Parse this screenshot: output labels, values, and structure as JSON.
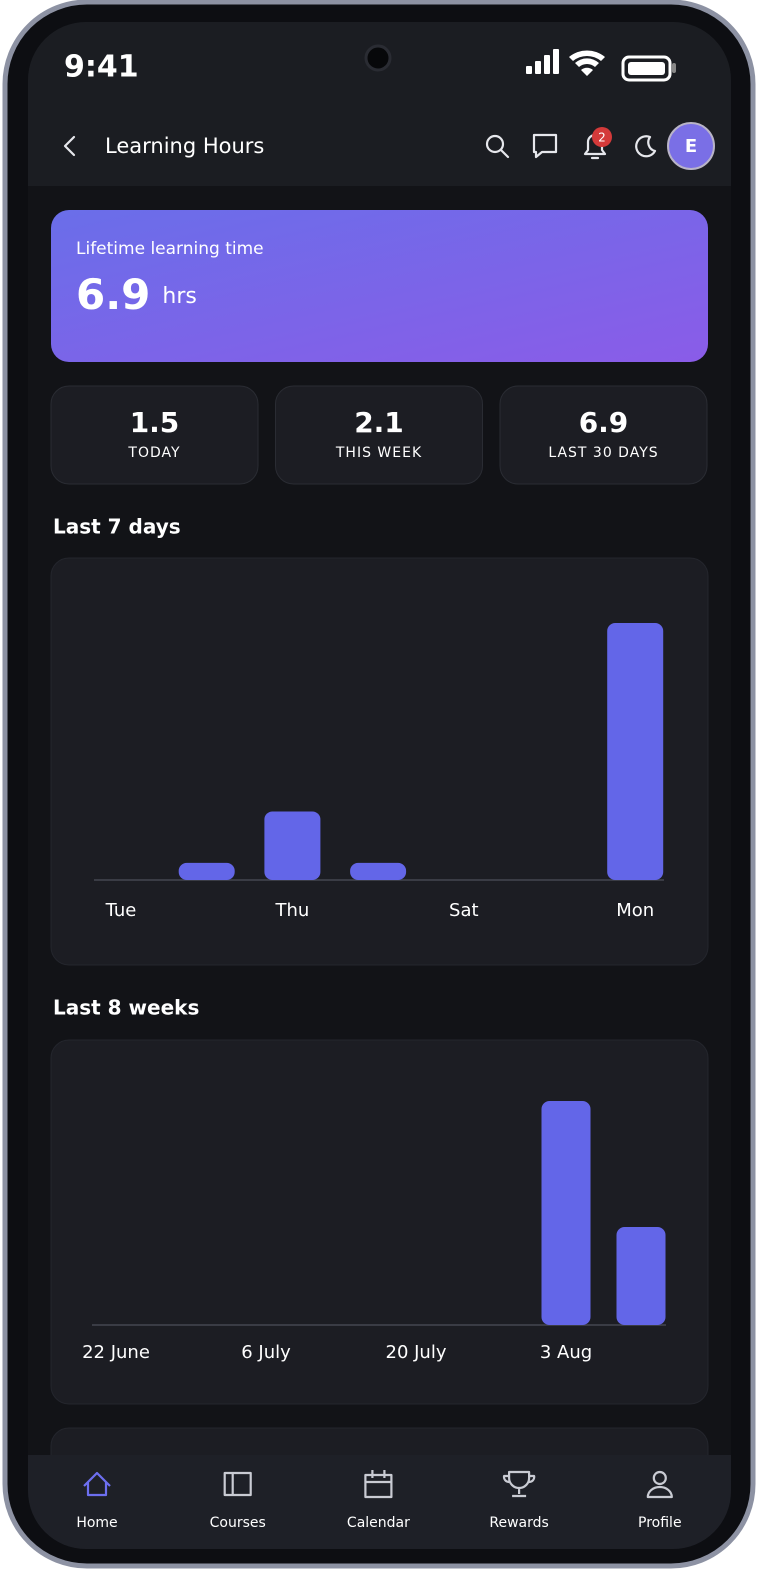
{
  "status_bar": {
    "time": "9:41"
  },
  "header": {
    "title": "Learning Hours",
    "notification_count": 2,
    "avatar": "E"
  },
  "summary": {
    "label": "Lifetime learning time",
    "value": 6.9,
    "unit": "hrs"
  },
  "stats": [
    {
      "value": 1.5,
      "label": "TODAY"
    },
    {
      "value": 2.1,
      "label": "THIS WEEK"
    },
    {
      "value": 6.9,
      "label": "LAST 30 DAYS"
    }
  ],
  "charts": [
    {
      "type": "bar",
      "title": "Last 7 days",
      "color": "#6366e8",
      "categories": [
        "Tue",
        null,
        "Thu",
        null,
        "Sat",
        null,
        "Mon"
      ],
      "values": [
        0,
        0.1,
        0.4,
        0.1,
        0,
        0,
        1.5
      ]
    },
    {
      "type": "bar",
      "title": "Last 8 weeks",
      "color": "#6366e8",
      "categories": [
        "22 June",
        null,
        "6 July",
        null,
        "20 July",
        null,
        "3 Aug",
        null
      ],
      "values": [
        0,
        0,
        0,
        0,
        0,
        0,
        4.8,
        2.1
      ]
    }
  ],
  "nav": {
    "items": [
      "Home",
      "Courses",
      "Calendar",
      "Rewards",
      "Profile"
    ],
    "active": 0
  }
}
